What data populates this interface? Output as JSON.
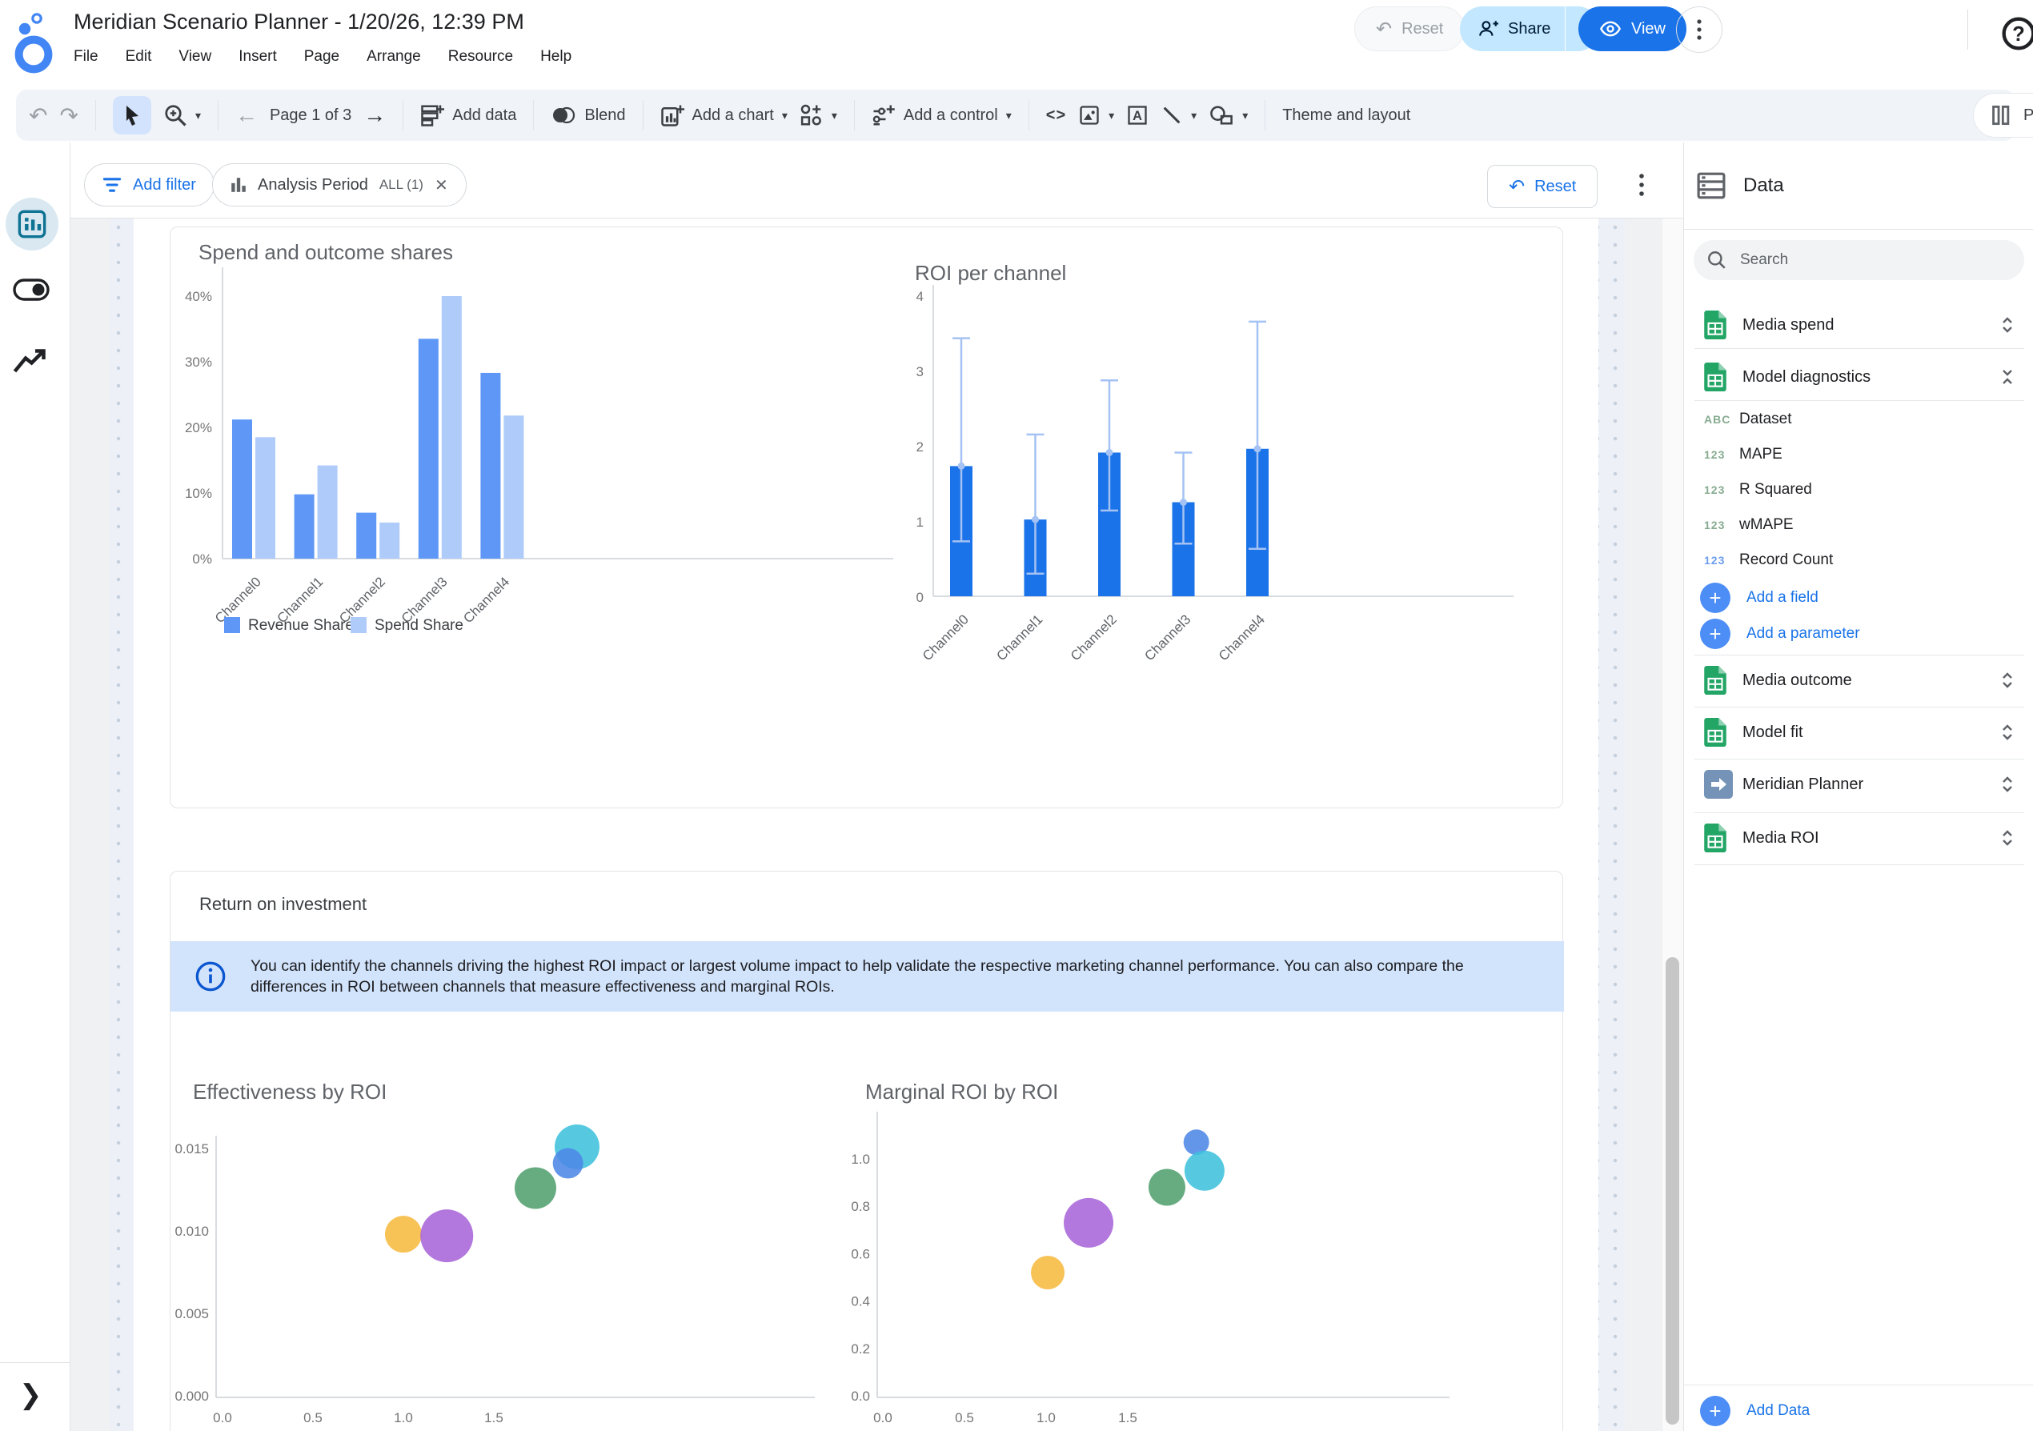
{
  "header": {
    "title": "Meridian Scenario Planner - 1/20/26, 12:39 PM",
    "menus": [
      "File",
      "Edit",
      "View",
      "Insert",
      "Page",
      "Arrange",
      "Resource",
      "Help"
    ],
    "reset_label": "Reset",
    "share_label": "Share",
    "view_label": "View"
  },
  "toolbar": {
    "page_indicator": "Page 1 of 3",
    "add_data_label": "Add data",
    "blend_label": "Blend",
    "add_chart_label": "Add a chart",
    "add_control_label": "Add a control",
    "embed_label": "<>",
    "theme_label": "Theme and layout",
    "pause_label": "Pause u"
  },
  "filter_bar": {
    "add_filter_label": "Add filter",
    "chip_label": "Analysis Period",
    "chip_state": "ALL (1)",
    "chip_close": "✕",
    "reset_label": "Reset"
  },
  "section": {
    "roi_title": "Return on investment",
    "info_text": "You can identify the channels driving the highest ROI impact or largest volume impact to help validate the respective marketing channel performance. You can also compare the differences in ROI between channels that measure effectiveness and marginal ROIs."
  },
  "data_panel": {
    "title": "Data",
    "search_placeholder": "Search",
    "sources": [
      {
        "label": "Media spend"
      },
      {
        "label": "Model diagnostics"
      },
      {
        "label": "Media outcome"
      },
      {
        "label": "Model fit"
      },
      {
        "label": "Meridian Planner"
      },
      {
        "label": "Media ROI"
      }
    ],
    "fields": [
      {
        "type": "ABC",
        "label": "Dataset"
      },
      {
        "type": "123",
        "label": "MAPE"
      },
      {
        "type": "123",
        "label": "R Squared"
      },
      {
        "type": "123",
        "label": "wMAPE"
      },
      {
        "type": "123",
        "label": "Record Count"
      }
    ],
    "add_field_label": "Add a field",
    "add_parameter_label": "Add a parameter",
    "add_data_label": "Add Data"
  },
  "chart_data": [
    {
      "type": "bar",
      "title": "Spend and outcome shares",
      "categories": [
        "Channel0",
        "Channel1",
        "Channel2",
        "Channel3",
        "Channel4"
      ],
      "series": [
        {
          "name": "Revenue Share",
          "color": "#5e97f6",
          "values": [
            21.2,
            9.8,
            7.0,
            33.5,
            28.3
          ]
        },
        {
          "name": "Spend Share",
          "color": "#aecbfa",
          "values": [
            18.5,
            14.2,
            5.5,
            40.0,
            21.8
          ]
        }
      ],
      "yticks": [
        0,
        10,
        20,
        30,
        40
      ],
      "ytick_format": "percent",
      "ylim": [
        0,
        44
      ],
      "grid": false,
      "legend_position": "bottom"
    },
    {
      "type": "bar",
      "title": "ROI per channel",
      "categories": [
        "Channel0",
        "Channel1",
        "Channel2",
        "Channel3",
        "Channel4"
      ],
      "values": [
        1.73,
        1.02,
        1.91,
        1.25,
        1.96
      ],
      "error_low": [
        0.73,
        0.3,
        1.14,
        0.7,
        0.63
      ],
      "error_high": [
        3.43,
        2.15,
        2.87,
        1.91,
        3.65
      ],
      "yticks": [
        0,
        1,
        2,
        3,
        4
      ],
      "ylim": [
        0,
        4.1
      ],
      "bar_color": "#1a73e8",
      "error_color": "#a4c2f4",
      "grid": false
    },
    {
      "type": "scatter",
      "title": "Effectiveness by ROI",
      "xticks": [
        0,
        0.5,
        1,
        1.5
      ],
      "yticks": [
        0,
        0.005,
        0.01,
        0.015
      ],
      "xlim": [
        0,
        1.9
      ],
      "ylim": [
        0,
        0.0165
      ],
      "points": [
        {
          "x": 1.0,
          "y": 0.0098,
          "r": 23,
          "color": "#f6b93f"
        },
        {
          "x": 1.24,
          "y": 0.0097,
          "r": 33,
          "color": "#a865d8"
        },
        {
          "x": 1.73,
          "y": 0.0126,
          "r": 26,
          "color": "#51a06e"
        },
        {
          "x": 1.96,
          "y": 0.0151,
          "r": 28,
          "color": "#3fc1dd"
        },
        {
          "x": 1.91,
          "y": 0.0141,
          "r": 19,
          "color": "#4d87e6"
        }
      ]
    },
    {
      "type": "scatter",
      "title": "Marginal ROI by ROI",
      "xticks": [
        0,
        0.5,
        1,
        1.5
      ],
      "yticks": [
        0,
        0.2,
        0.4,
        0.6,
        0.8,
        1.0
      ],
      "xlim": [
        0,
        2.0
      ],
      "ylim": [
        0,
        1.2
      ],
      "points": [
        {
          "x": 1.01,
          "y": 0.52,
          "r": 21,
          "color": "#f6b93f"
        },
        {
          "x": 1.26,
          "y": 0.73,
          "r": 31,
          "color": "#a865d8"
        },
        {
          "x": 1.74,
          "y": 0.88,
          "r": 23,
          "color": "#51a06e"
        },
        {
          "x": 1.92,
          "y": 1.07,
          "r": 16,
          "color": "#4d87e6"
        },
        {
          "x": 1.97,
          "y": 0.95,
          "r": 25,
          "color": "#3fc1dd"
        }
      ]
    }
  ],
  "colors": {
    "accent_blue": "#1a73e8",
    "share_bg": "#c2e7ff",
    "banner_bg": "#d2e3fc",
    "bar_blue": "#5e97f6",
    "bar_light_blue": "#aecbfa",
    "sheets_green": "#23a566"
  }
}
